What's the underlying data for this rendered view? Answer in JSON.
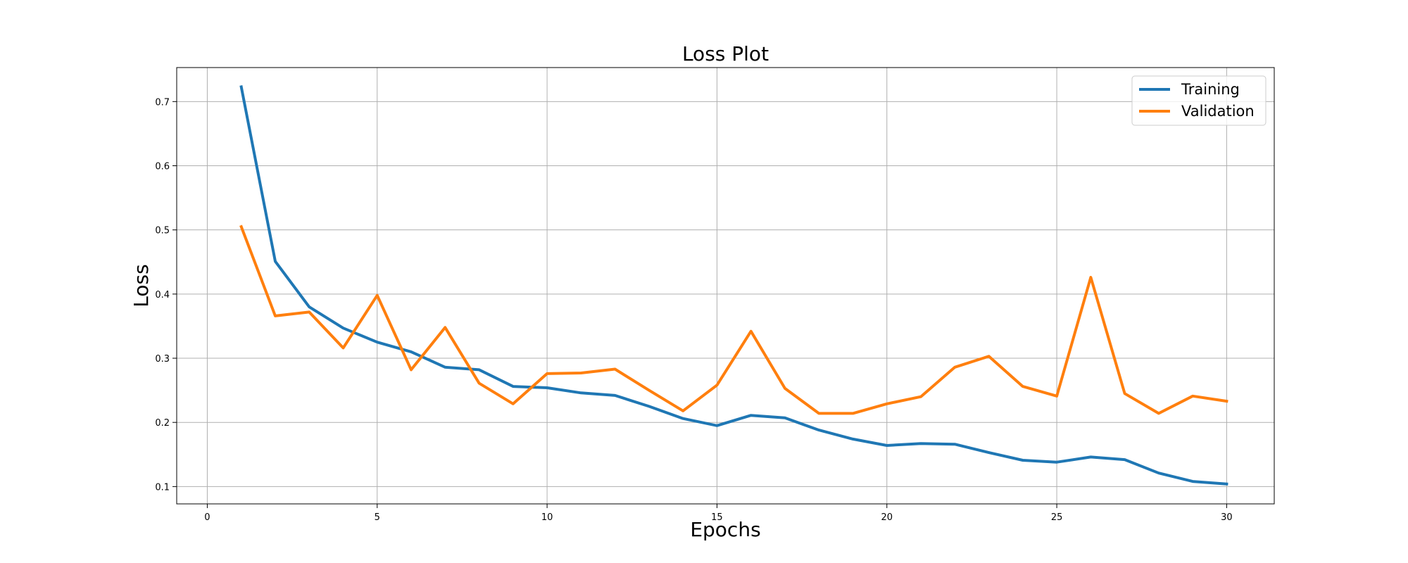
{
  "chart_data": {
    "type": "line",
    "title": "Loss Plot",
    "xlabel": "Epochs",
    "ylabel": "Loss",
    "xlim": [
      -0.9,
      31.4
    ],
    "ylim": [
      0.073,
      0.753
    ],
    "xticks": [
      0,
      5,
      10,
      15,
      20,
      25,
      30
    ],
    "yticks": [
      0.1,
      0.2,
      0.3,
      0.4,
      0.5,
      0.6,
      0.7
    ],
    "grid": true,
    "legend_position": "top-right",
    "x": [
      1,
      2,
      3,
      4,
      5,
      6,
      7,
      8,
      9,
      10,
      11,
      12,
      13,
      14,
      15,
      16,
      17,
      18,
      19,
      20,
      21,
      22,
      23,
      24,
      25,
      26,
      27,
      28,
      29,
      30
    ],
    "series": [
      {
        "name": "Training",
        "color": "#1f77b4",
        "values": [
          0.723,
          0.451,
          0.38,
          0.347,
          0.325,
          0.31,
          0.286,
          0.282,
          0.256,
          0.254,
          0.246,
          0.242,
          0.225,
          0.206,
          0.195,
          0.211,
          0.207,
          0.188,
          0.174,
          0.164,
          0.167,
          0.166,
          0.153,
          0.141,
          0.138,
          0.146,
          0.142,
          0.121,
          0.108,
          0.104
        ]
      },
      {
        "name": "Validation",
        "color": "#ff7f0e",
        "values": [
          0.505,
          0.366,
          0.372,
          0.316,
          0.398,
          0.282,
          0.348,
          0.261,
          0.229,
          0.276,
          0.277,
          0.283,
          0.25,
          0.218,
          0.258,
          0.342,
          0.253,
          0.214,
          0.214,
          0.229,
          0.24,
          0.286,
          0.303,
          0.256,
          0.241,
          0.426,
          0.245,
          0.214,
          0.241,
          0.233
        ]
      }
    ]
  }
}
